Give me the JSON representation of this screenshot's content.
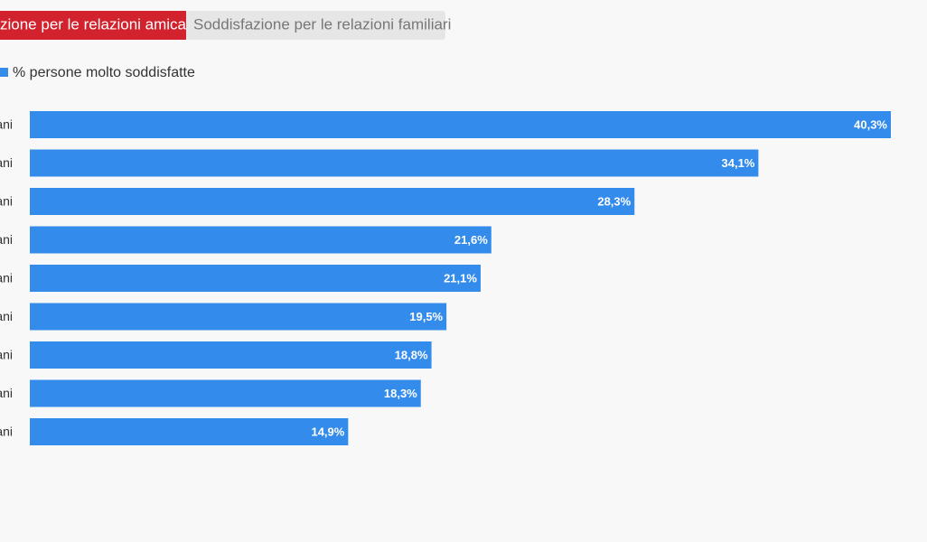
{
  "tabs": [
    "zione per le relazioni amicali",
    "Soddisfazione per le relazioni familiari"
  ],
  "chart_data": {
    "type": "bar",
    "orientation": "horizontal",
    "categories": [
      "ani",
      "ani",
      "ani",
      "ani",
      "ani",
      "ani",
      "ani",
      "ani",
      "ani"
    ],
    "series": [
      {
        "name": "% persone molto soddisfatte",
        "color": "#338bec",
        "values": [
          40.3,
          34.1,
          28.3,
          21.6,
          21.1,
          19.5,
          18.8,
          18.3,
          14.9
        ],
        "value_labels": [
          "40,3%",
          "34,1%",
          "28,3%",
          "21,6%",
          "21,1%",
          "19,5%",
          "18,8%",
          "18,3%",
          "14,9%"
        ]
      }
    ],
    "legend": "top-left"
  }
}
